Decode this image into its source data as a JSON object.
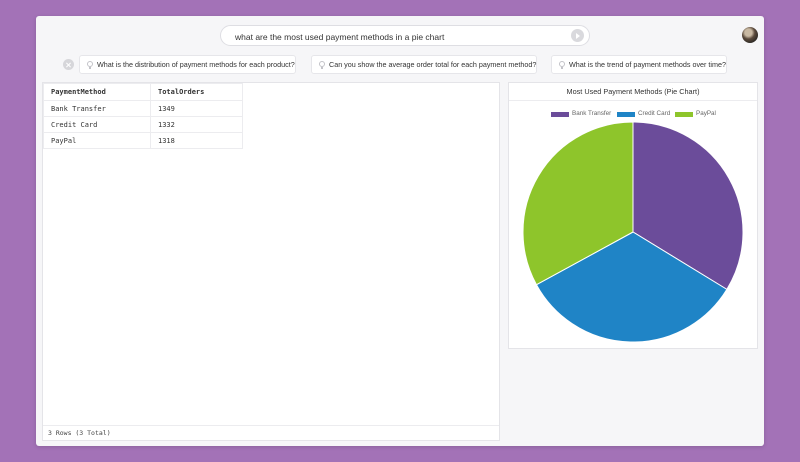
{
  "search": {
    "query": "what are the most used payment methods in a pie chart"
  },
  "suggestions": [
    "What is the distribution of payment methods for each product?",
    "Can you show the average order total for each payment method?",
    "What is the trend of payment methods over time?"
  ],
  "table": {
    "columns": [
      "PaymentMethod",
      "TotalOrders"
    ],
    "rows": [
      [
        "Bank Transfer",
        "1349"
      ],
      [
        "Credit Card",
        "1332"
      ],
      [
        "PayPal",
        "1318"
      ]
    ],
    "footer": "3 Rows (3 Total)"
  },
  "chart_data": {
    "type": "pie",
    "title": "Most Used Payment Methods (Pie Chart)",
    "categories": [
      "Bank Transfer",
      "Credit Card",
      "PayPal"
    ],
    "values": [
      1349,
      1332,
      1318
    ],
    "colors": [
      "#6b4c9a",
      "#1f84c6",
      "#8ec52b"
    ],
    "legend": "top"
  }
}
